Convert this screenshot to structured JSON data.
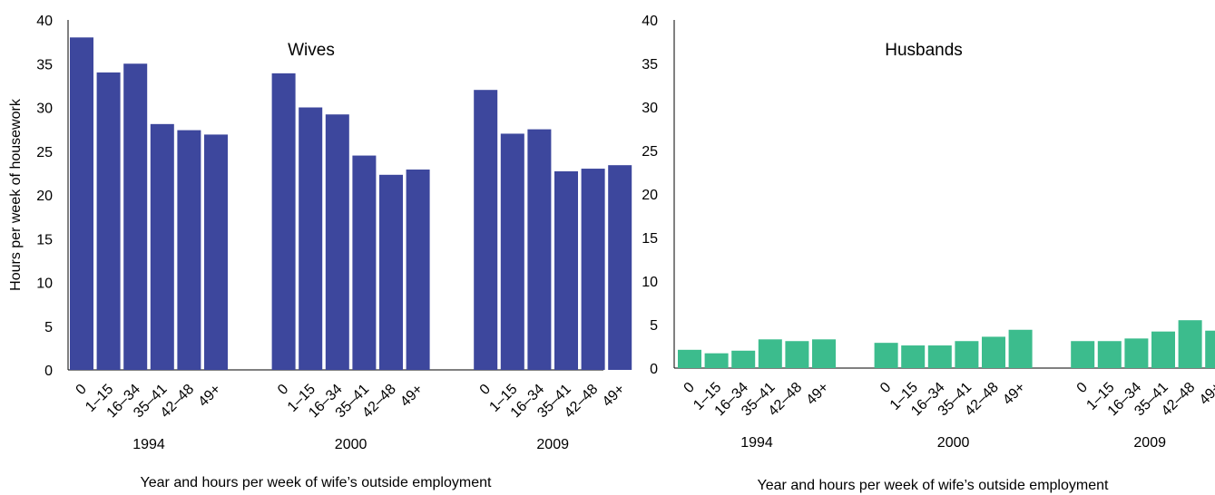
{
  "chart_data": [
    {
      "type": "bar",
      "title": "Wives",
      "ylabel": "Hours per week of housework",
      "xlabel": "Year and hours per week of wife’s outside employment",
      "ylim": [
        0,
        40
      ],
      "yticks": [
        0,
        5,
        10,
        15,
        20,
        25,
        30,
        35,
        40
      ],
      "color": "#3d479d",
      "groups": [
        "1994",
        "2000",
        "2009"
      ],
      "categories": [
        "0",
        "1–15",
        "16–34",
        "35–41",
        "42–48",
        "49+"
      ],
      "series": [
        {
          "group": "1994",
          "values": [
            38,
            34,
            35,
            28.1,
            27.4,
            26.9
          ]
        },
        {
          "group": "2000",
          "values": [
            33.9,
            30,
            29.2,
            24.5,
            22.3,
            22.9
          ]
        },
        {
          "group": "2009",
          "values": [
            32,
            27,
            27.5,
            22.7,
            23,
            23.4
          ]
        }
      ]
    },
    {
      "type": "bar",
      "title": "Husbands",
      "ylabel": "",
      "xlabel": "Year and hours per week of wife’s outside employment",
      "ylim": [
        0,
        40
      ],
      "yticks": [
        0,
        5,
        10,
        15,
        20,
        25,
        30,
        35,
        40
      ],
      "color": "#3cbc8d",
      "groups": [
        "1994",
        "2000",
        "2009"
      ],
      "categories": [
        "0",
        "1–15",
        "16–34",
        "35–41",
        "42–48",
        "49+"
      ],
      "series": [
        {
          "group": "1994",
          "values": [
            2.1,
            1.7,
            2,
            3.3,
            3.1,
            3.3
          ]
        },
        {
          "group": "2000",
          "values": [
            2.9,
            2.6,
            2.6,
            3.1,
            3.6,
            4.4
          ]
        },
        {
          "group": "2009",
          "values": [
            3.1,
            3.1,
            3.4,
            4.2,
            5.5,
            4.3
          ]
        }
      ]
    }
  ]
}
